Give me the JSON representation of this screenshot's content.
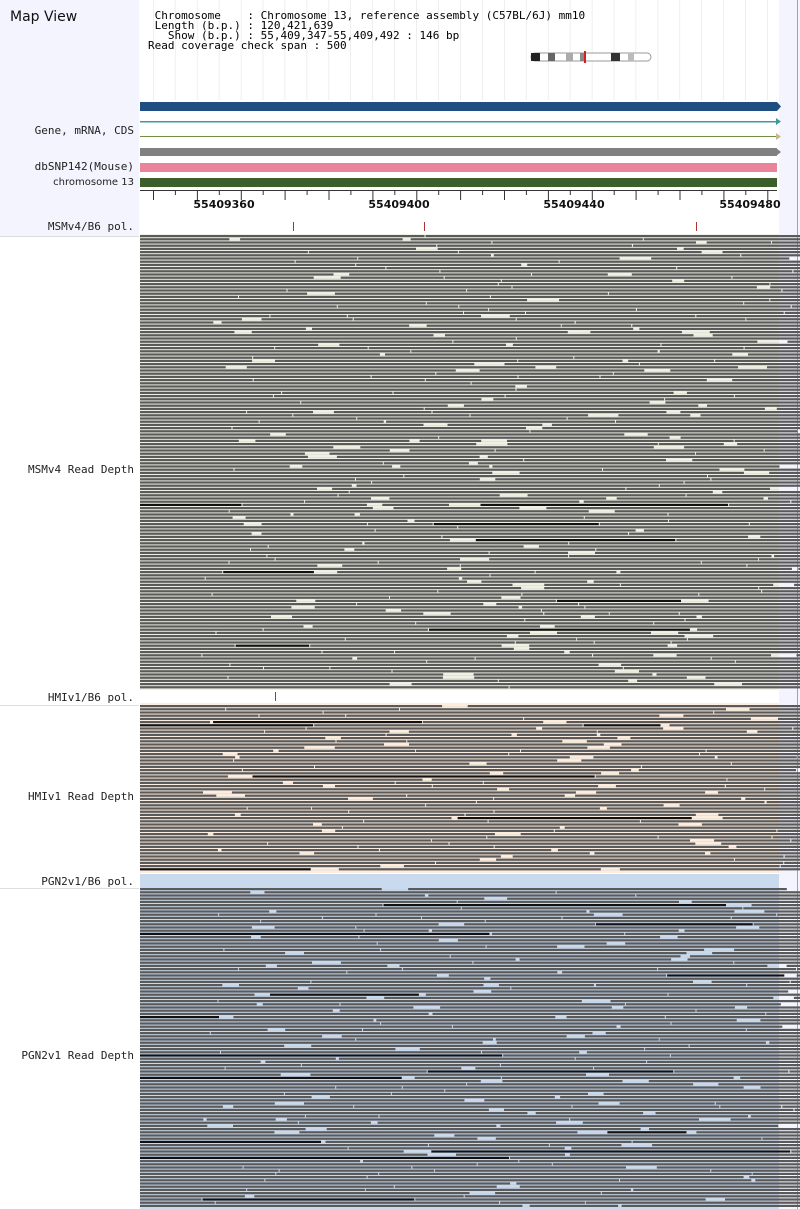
{
  "app": {
    "title": "Map View"
  },
  "header": {
    "chromosome_line": " Chromosome    : Chromosome 13, reference assembly (C57BL/6J) mm10",
    "length_line": " Length (b.p.) : 120,421,639",
    "show_line": "   Show (b.p.) : 55,409,347-55,409,492 : 146 bp",
    "coverage_line": "Read coverage check span : 500"
  },
  "tracks": {
    "gene": "Gene, mRNA, CDS",
    "dbsnp": "dbSNP142(Mouse)",
    "chromosome": "chromosome 13"
  },
  "ruler": {
    "ticks": [
      "55409360",
      "55409400",
      "55409440",
      "55409480"
    ]
  },
  "samples": [
    {
      "pol_label": "MSMv4/B6 pol.",
      "depth_label": "MSMv4 Read Depth",
      "bg": "#eef1e4"
    },
    {
      "pol_label": "HMIv1/B6 pol.",
      "depth_label": "HMIv1 Read Depth",
      "bg": "#fdece0"
    },
    {
      "pol_label": "PGN2v1/B6 pol.",
      "depth_label": "PGN2v1 Read Depth",
      "bg": "#c9d9ee"
    }
  ],
  "colors": {
    "gene_bar": "#1f4e80",
    "mrna_line": "#3f9b9b",
    "cds_line": "#6d8f3f",
    "gray_bar": "#808080",
    "dbsnp_bar": "#e9849a",
    "chrom_bar": "#3c5e2a",
    "read": "#5a5a5a",
    "read_dark": "#111111",
    "snp_tick": "#b03030",
    "left_panel": "#f3f4fd"
  }
}
